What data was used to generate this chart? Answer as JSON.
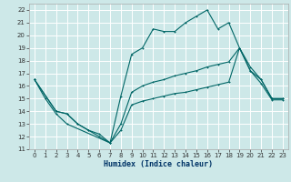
{
  "title": "",
  "xlabel": "Humidex (Indice chaleur)",
  "bg_color": "#cde8e8",
  "grid_color": "#ffffff",
  "line_color": "#006666",
  "xlim": [
    -0.5,
    23.5
  ],
  "ylim": [
    11,
    22.5
  ],
  "xticks": [
    0,
    1,
    2,
    3,
    4,
    5,
    6,
    7,
    8,
    9,
    10,
    11,
    12,
    13,
    14,
    15,
    16,
    17,
    18,
    19,
    20,
    21,
    22,
    23
  ],
  "yticks": [
    11,
    12,
    13,
    14,
    15,
    16,
    17,
    18,
    19,
    20,
    21,
    22
  ],
  "line1_x": [
    0,
    1,
    2,
    3,
    7,
    8,
    9,
    10,
    11,
    12,
    13,
    14,
    15,
    16,
    17,
    18,
    19,
    20,
    21,
    22,
    23
  ],
  "line1_y": [
    16.5,
    15.0,
    13.8,
    13.0,
    11.5,
    15.2,
    18.5,
    19.0,
    20.5,
    20.3,
    20.3,
    21.0,
    21.5,
    22.0,
    20.5,
    21.0,
    19.0,
    17.2,
    16.5,
    15.0,
    15.0
  ],
  "line2_x": [
    0,
    2,
    3,
    4,
    5,
    6,
    7,
    8,
    9,
    10,
    11,
    12,
    13,
    14,
    15,
    16,
    17,
    18,
    19,
    20,
    21,
    22,
    23
  ],
  "line2_y": [
    16.5,
    14.0,
    13.8,
    13.0,
    12.5,
    12.0,
    11.5,
    13.0,
    15.5,
    16.0,
    16.3,
    16.5,
    16.8,
    17.0,
    17.2,
    17.5,
    17.7,
    17.9,
    19.0,
    17.5,
    16.5,
    15.0,
    15.0
  ],
  "line3_x": [
    0,
    2,
    3,
    4,
    5,
    6,
    7,
    8,
    9,
    10,
    11,
    12,
    13,
    14,
    15,
    16,
    17,
    18,
    19,
    20,
    21,
    22,
    23
  ],
  "line3_y": [
    16.5,
    14.0,
    13.8,
    13.0,
    12.5,
    12.2,
    11.5,
    12.5,
    14.5,
    14.8,
    15.0,
    15.2,
    15.4,
    15.5,
    15.7,
    15.9,
    16.1,
    16.3,
    19.0,
    17.2,
    16.2,
    14.9,
    14.9
  ],
  "tick_labelsize": 5,
  "xlabel_fontsize": 6,
  "lw": 0.8,
  "ms": 2.0
}
